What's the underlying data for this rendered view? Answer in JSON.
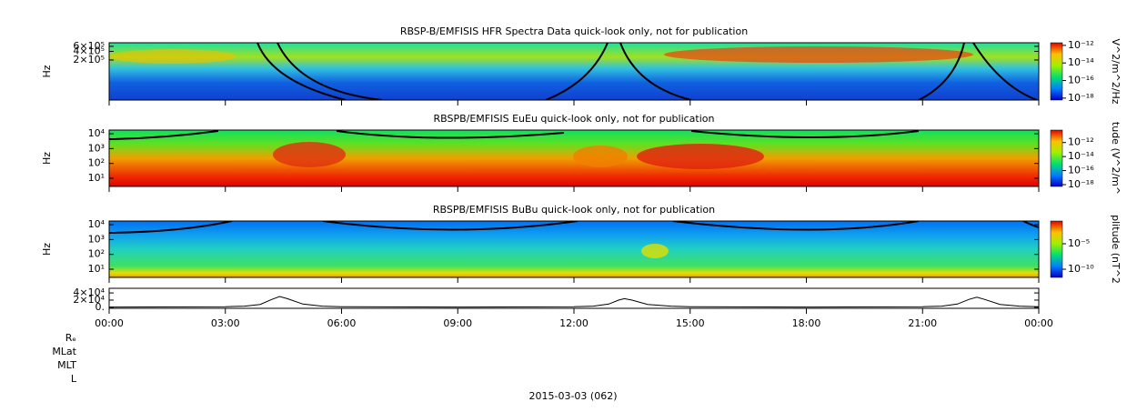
{
  "chart_data": [
    {
      "type": "spectrogram",
      "title": "RBSP-B/EMFISIS  HFR Spectra Data quick-look only, not for publication",
      "y_label": "Hz",
      "log_y": true,
      "ylim": [
        8000,
        800000
      ],
      "yticks": [
        {
          "value": 600000,
          "label": "6×10⁵"
        },
        {
          "value": 400000,
          "label": "4×10⁵"
        },
        {
          "value": 200000,
          "label": "2×10⁵"
        }
      ],
      "colorbar": {
        "label": "V^2/m^2/Hz",
        "lim": [
          6e-19,
          2e-12
        ],
        "ticks": [
          {
            "value": 1e-12,
            "label": "10⁻¹²"
          },
          {
            "value": 1e-14,
            "label": "10⁻¹⁴"
          },
          {
            "value": 1e-16,
            "label": "10⁻¹⁶"
          },
          {
            "value": 1e-18,
            "label": "10⁻¹⁸"
          }
        ]
      }
    },
    {
      "type": "spectrogram",
      "title": "RBSPB/EMFISIS  EuEu quick-look only, not for publication",
      "y_label": "Hz",
      "log_y": true,
      "ylim": [
        2.8,
        17800
      ],
      "yticks": [
        {
          "value": 10000,
          "label": "10⁴"
        },
        {
          "value": 1000,
          "label": "10³"
        },
        {
          "value": 100,
          "label": "10²"
        },
        {
          "value": 10,
          "label": "10¹"
        }
      ],
      "colorbar": {
        "label": "tude (V^2/m^",
        "lim": [
          5.5e-19,
          6e-11
        ],
        "ticks": [
          {
            "value": 1e-12,
            "label": "10⁻¹²"
          },
          {
            "value": 1e-14,
            "label": "10⁻¹⁴"
          },
          {
            "value": 1e-16,
            "label": "10⁻¹⁶"
          },
          {
            "value": 1e-18,
            "label": "10⁻¹⁸"
          }
        ]
      }
    },
    {
      "type": "spectrogram",
      "title": "RBSPB/EMFISIS  BuBu quick-look only, not for publication",
      "y_label": "Hz",
      "log_y": true,
      "ylim": [
        2.8,
        17800
      ],
      "yticks": [
        {
          "value": 10000,
          "label": "10⁴"
        },
        {
          "value": 1000,
          "label": "10³"
        },
        {
          "value": 100,
          "label": "10²"
        },
        {
          "value": 10,
          "label": "10¹"
        }
      ],
      "colorbar": {
        "label": "plitude (nT^2",
        "lim": [
          2.5e-12,
          0.29
        ],
        "ticks": [
          {
            "value": 1e-05,
            "label": "10⁻⁵"
          },
          {
            "value": 1e-10,
            "label": "10⁻¹⁰"
          }
        ]
      }
    },
    {
      "type": "line",
      "color": "#000000",
      "ylim": [
        -3000,
        53000
      ],
      "yticks": [
        {
          "value": 40000,
          "label": "4×10⁴"
        },
        {
          "value": 20000,
          "label": "2×10⁴"
        },
        {
          "value": 0,
          "label": "0."
        }
      ],
      "xlim": [
        0,
        24
      ],
      "xticks": [
        {
          "value": 0,
          "label": "00:00"
        },
        {
          "value": 3,
          "label": "03:00"
        },
        {
          "value": 6,
          "label": "06:00"
        },
        {
          "value": 9,
          "label": "09:00"
        },
        {
          "value": 12,
          "label": "12:00"
        },
        {
          "value": 15,
          "label": "15:00"
        },
        {
          "value": 18,
          "label": "18:00"
        },
        {
          "value": 21,
          "label": "21:00"
        },
        {
          "value": 24,
          "label": "00:00"
        }
      ],
      "x": [
        0,
        3,
        3.5,
        3.9,
        4.2,
        4.4,
        4.6,
        5,
        5.5,
        6,
        9,
        12,
        12.5,
        12.9,
        13.15,
        13.3,
        13.5,
        13.9,
        14.5,
        15,
        18,
        21,
        21.5,
        21.9,
        22.2,
        22.4,
        22.6,
        23,
        23.5,
        24
      ],
      "values": [
        500,
        1500,
        3000,
        8000,
        22000,
        30000,
        24000,
        9000,
        3000,
        1500,
        500,
        1500,
        3000,
        9000,
        20000,
        24000,
        20000,
        8000,
        3000,
        1500,
        500,
        1500,
        3000,
        9000,
        22000,
        28000,
        22000,
        8000,
        3000,
        1500
      ]
    }
  ],
  "orbit_labels": [
    "Rₑ",
    "MLat",
    "MLT",
    "L"
  ],
  "date_label": "2015-03-03 (062)"
}
